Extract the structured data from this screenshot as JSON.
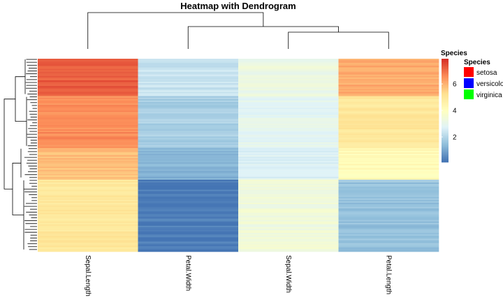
{
  "chart_data": {
    "type": "heatmap",
    "title": "Heatmap with Dendrogram",
    "columns": [
      "Sepal.Length",
      "Petal.Width",
      "Sepal.Width",
      "Petal.Length"
    ],
    "row_groups": [
      {
        "rows": 26,
        "Sepal.Length": 7.3,
        "Petal.Width": 2.3,
        "Sepal.Width": 3.2,
        "Petal.Length": 6.1
      },
      {
        "rows": 36,
        "Sepal.Length": 6.6,
        "Petal.Width": 1.8,
        "Sepal.Width": 2.9,
        "Petal.Length": 5.0
      },
      {
        "rows": 22,
        "Sepal.Length": 5.8,
        "Petal.Width": 1.2,
        "Sepal.Width": 2.7,
        "Petal.Length": 4.2
      },
      {
        "rows": 50,
        "Sepal.Length": 5.0,
        "Petal.Width": 0.2,
        "Sepal.Width": 3.4,
        "Petal.Length": 1.5
      }
    ],
    "color_scale": {
      "legend_title": "Species",
      "ticks": [
        2,
        4,
        6
      ],
      "range": [
        0.1,
        7.9
      ],
      "colors": [
        "#4575b4",
        "#91bfdb",
        "#e0f3f8",
        "#ffffbf",
        "#fee090",
        "#fc8d59",
        "#d73027"
      ]
    },
    "annotation_legend": {
      "title": "Species",
      "entries": [
        {
          "label": "setosa",
          "color": "#ff0000"
        },
        {
          "label": "versicolor",
          "color": "#0000ff"
        },
        {
          "label": "virginica",
          "color": "#00ff00"
        }
      ]
    },
    "column_dendrogram": true,
    "row_dendrogram": true
  }
}
